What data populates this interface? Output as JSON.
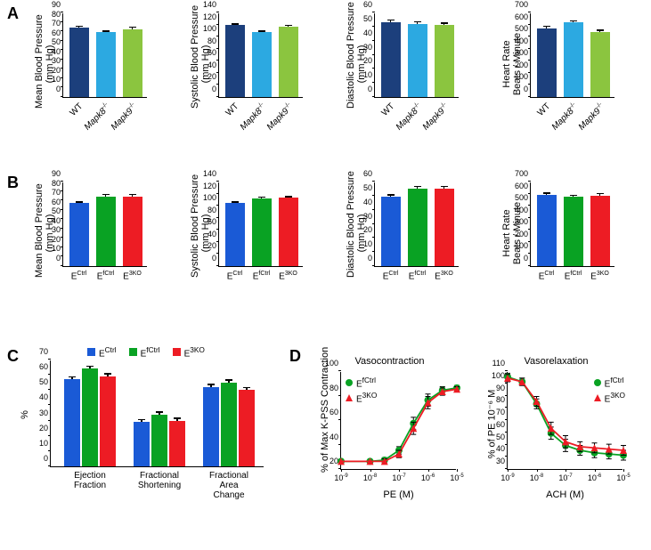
{
  "colors": {
    "wt_darkblue": "#1c3f7c",
    "mapk8_cyan": "#2ca9e1",
    "mapk9_green": "#8bc53f",
    "ectrl_blue": "#1a5ad6",
    "efctrl_green": "#09a223",
    "e3ko_red": "#ed1c24",
    "line_green": "#09a223",
    "line_red": "#ed1c24",
    "axis": "#000000",
    "background": "#ffffff"
  },
  "panelA": {
    "label": "A",
    "x_labels": [
      "WT",
      "Mapk8⁻ᐟ⁻",
      "Mapk9⁻ᐟ⁻"
    ],
    "charts": [
      {
        "y_label": "Mean Blood Pressure\n(mm Hg)",
        "ymin": 0,
        "ymax": 90,
        "ytick_step": 10,
        "values": [
          74,
          69,
          72
        ],
        "errors": [
          2,
          2,
          3
        ]
      },
      {
        "y_label": "Systolic Blood Pressure\n(mm Hg)",
        "ymin": 0,
        "ymax": 140,
        "ytick_step": 20,
        "values": [
          119,
          107,
          117
        ],
        "errors": [
          3,
          3,
          3
        ]
      },
      {
        "y_label": "Diastolic Blood Pressure\n(mm Hg)",
        "ymin": 0,
        "ymax": 60,
        "ytick_step": 10,
        "values": [
          53,
          52,
          51
        ],
        "errors": [
          2,
          2,
          2
        ]
      },
      {
        "y_label": "Heart Rate\nBeats / Minute",
        "ymin": 0,
        "ymax": 700,
        "ytick_step": 100,
        "values": [
          570,
          620,
          540
        ],
        "errors": [
          20,
          15,
          20
        ]
      }
    ]
  },
  "panelB": {
    "label": "B",
    "x_labels": [
      "E<sup>Ctrl</sup>",
      "E<sup>fCtrl</sup>",
      "E<sup>3KO</sup>"
    ],
    "charts": [
      {
        "y_label": "Mean Blood Pressure\n(mm Hg)",
        "ymin": 0,
        "ymax": 90,
        "ytick_step": 10,
        "values": [
          67,
          74,
          74
        ],
        "errors": [
          2,
          3,
          3
        ]
      },
      {
        "y_label": "Systolic Blood Pressure\n(mm Hg)",
        "ymin": 0,
        "ymax": 140,
        "ytick_step": 20,
        "values": [
          104,
          112,
          113
        ],
        "errors": [
          3,
          3,
          3
        ]
      },
      {
        "y_label": "Diastolic Blood Pressure\n(mm Hg)",
        "ymin": 0,
        "ymax": 60,
        "ytick_step": 10,
        "values": [
          49,
          55,
          55
        ],
        "errors": [
          2,
          2,
          2
        ]
      },
      {
        "y_label": "Heart Rate\nBeats / Minute",
        "ymin": 0,
        "ymax": 700,
        "ytick_step": 100,
        "values": [
          590,
          575,
          585
        ],
        "errors": [
          20,
          18,
          20
        ]
      }
    ]
  },
  "panelC": {
    "label": "C",
    "y_label": "%",
    "ymin": 0,
    "ymax": 70,
    "ytick_step": 10,
    "legend": [
      "E<sup>Ctrl</sup>",
      "E<sup>fCtrl</sup>",
      "E<sup>3KO</sup>"
    ],
    "groups": [
      "Ejection\nFraction",
      "Fractional\nShortening",
      "Fractional\nArea Change"
    ],
    "series": [
      {
        "color_key": "ectrl_blue",
        "values": [
          57,
          29,
          52
        ],
        "errors": [
          2,
          2,
          2
        ]
      },
      {
        "color_key": "efctrl_green",
        "values": [
          64,
          34,
          55
        ],
        "errors": [
          2,
          2,
          2
        ]
      },
      {
        "color_key": "e3ko_red",
        "values": [
          59,
          30,
          50
        ],
        "errors": [
          2,
          2,
          2
        ]
      }
    ]
  },
  "panelD": {
    "label": "D",
    "charts": [
      {
        "title": "Vasocontraction",
        "y_label": "% of Max K-PSS Contraction",
        "x_label": "PE (M)",
        "ymin": 20,
        "ymax": 100,
        "ytick_step": 20,
        "x_log": [
          -9,
          -8,
          -7,
          -6,
          -5
        ],
        "x_ticks": [
          "10⁻⁹",
          "10⁻⁸",
          "10⁻⁷",
          "10⁻⁶",
          "10⁻⁵"
        ],
        "legend_pos": "top-left",
        "series": [
          {
            "name": "E<sup>fCtrl</sup>",
            "color_key": "line_green",
            "marker": "circle",
            "x": [
              -9,
              -8,
              -7.5,
              -7,
              -6.5,
              -6,
              -5.5,
              -5
            ],
            "y": [
              27,
              27,
              28,
              36,
              58,
              77,
              85,
              87
            ],
            "err": [
              0,
              0,
              2,
              3,
              5,
              5,
              3,
              2
            ]
          },
          {
            "name": "E<sup>3KO</sup>",
            "color_key": "line_red",
            "marker": "triangle",
            "x": [
              -9,
              -8,
              -7.5,
              -7,
              -6.5,
              -6,
              -5.5,
              -5
            ],
            "y": [
              27,
              27,
              27,
              33,
              54,
              75,
              84,
              86
            ],
            "err": [
              0,
              0,
              2,
              3,
              5,
              5,
              3,
              2
            ]
          }
        ]
      },
      {
        "title": "Vasorelaxation",
        "y_label": "% of PE 10⁻⁶ M",
        "x_label": "ACH (M)",
        "ymin": 30,
        "ymax": 110,
        "ytick_step": 10,
        "x_log": [
          -9,
          -8,
          -7,
          -6,
          -5
        ],
        "x_ticks": [
          "10⁻⁹",
          "10⁻⁸",
          "10⁻⁷",
          "10⁻⁶",
          "10⁻⁵"
        ],
        "legend_pos": "top-right",
        "series": [
          {
            "name": "E<sup>fCtrl</sup>",
            "color_key": "line_green",
            "marker": "circle",
            "x": [
              -9,
              -8.5,
              -8,
              -7.5,
              -7,
              -6.5,
              -6,
              -5.5,
              -5
            ],
            "y": [
              106,
              102,
              84,
              60,
              50,
              46,
              44,
              43,
              42
            ],
            "err": [
              3,
              3,
              4,
              5,
              5,
              4,
              4,
              4,
              4
            ]
          },
          {
            "name": "E<sup>3KO</sup>",
            "color_key": "line_red",
            "marker": "triangle",
            "x": [
              -9,
              -8.5,
              -8,
              -7.5,
              -7,
              -6.5,
              -6,
              -5.5,
              -5
            ],
            "y": [
              105,
              102,
              86,
              64,
              53,
              49,
              48,
              47,
              46
            ],
            "err": [
              3,
              3,
              4,
              5,
              5,
              4,
              4,
              4,
              4
            ]
          }
        ]
      }
    ]
  }
}
